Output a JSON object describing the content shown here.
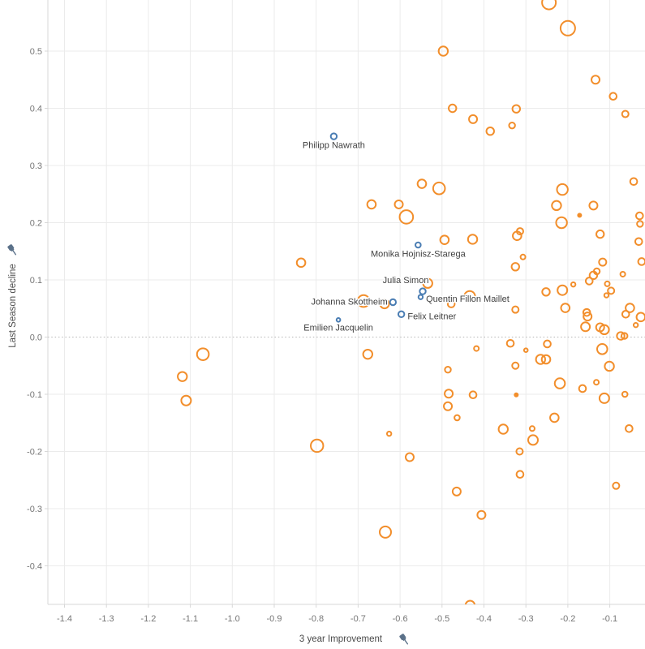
{
  "chart_data": {
    "type": "scatter",
    "title": "",
    "xlabel": "3 year Improvement",
    "ylabel": "Last Season decline",
    "legend": "none",
    "grid": true,
    "x_ticks": [
      -1.4,
      -1.3,
      -1.2,
      -1.1,
      -1.0,
      -0.9,
      -0.8,
      -0.7,
      -0.6,
      -0.5,
      -0.4,
      -0.3,
      -0.2,
      -0.1
    ],
    "y_ticks": [
      0.5,
      0.4,
      0.3,
      0.2,
      0.1,
      0.0,
      -0.1,
      -0.2,
      -0.3,
      -0.4
    ],
    "x_range": [
      -1.44,
      -0.01
    ],
    "y_range": [
      -0.47,
      0.59
    ],
    "zero_line_y": 0,
    "series": [
      {
        "name": "athletes",
        "color": "#f28e2b",
        "marker": "open-circle",
        "points": [
          [
            -0.245,
            0.585,
            8.5
          ],
          [
            -0.2,
            0.54,
            9
          ],
          [
            -0.497,
            0.5,
            5.7
          ],
          [
            -0.134,
            0.45,
            5
          ],
          [
            -0.092,
            0.421,
            4.3
          ],
          [
            -0.063,
            0.39,
            4
          ],
          [
            -0.475,
            0.4,
            4.7
          ],
          [
            -0.426,
            0.381,
            5
          ],
          [
            -0.385,
            0.36,
            4.7
          ],
          [
            -0.323,
            0.399,
            4.7
          ],
          [
            -0.333,
            0.37,
            3.7
          ],
          [
            -0.548,
            0.268,
            5.3
          ],
          [
            -0.507,
            0.26,
            7.3
          ],
          [
            -0.668,
            0.232,
            5.3
          ],
          [
            -0.603,
            0.232,
            5
          ],
          [
            -0.585,
            0.21,
            8.3
          ],
          [
            -0.227,
            0.23,
            5.7
          ],
          [
            -0.139,
            0.23,
            5
          ],
          [
            -0.213,
            0.258,
            6.7
          ],
          [
            -0.043,
            0.272,
            4.3
          ],
          [
            -0.172,
            0.213,
            2
          ],
          [
            -0.215,
            0.2,
            6.7
          ],
          [
            -0.029,
            0.212,
            4.3
          ],
          [
            -0.028,
            0.198,
            3.7
          ],
          [
            -0.494,
            0.17,
            5.3
          ],
          [
            -0.427,
            0.171,
            5.7
          ],
          [
            -0.321,
            0.177,
            5.3
          ],
          [
            -0.314,
            0.185,
            4
          ],
          [
            -0.123,
            0.18,
            4.7
          ],
          [
            -0.031,
            0.167,
            4.3
          ],
          [
            -0.307,
            0.14,
            3
          ],
          [
            -0.836,
            0.13,
            5.3
          ],
          [
            -0.117,
            0.131,
            4.5
          ],
          [
            -0.024,
            0.132,
            4.3
          ],
          [
            -0.325,
            0.123,
            4.7
          ],
          [
            -0.139,
            0.108,
            4.7
          ],
          [
            -0.131,
            0.115,
            3.7
          ],
          [
            -0.149,
            0.098,
            4.3
          ],
          [
            -0.069,
            0.11,
            3
          ],
          [
            -0.106,
            0.093,
            3
          ],
          [
            -0.097,
            0.081,
            4
          ],
          [
            -0.108,
            0.073,
            2.7
          ],
          [
            -0.187,
            0.092,
            2.7
          ],
          [
            -0.534,
            0.094,
            5.7
          ],
          [
            -0.252,
            0.079,
            4.7
          ],
          [
            -0.213,
            0.082,
            6
          ],
          [
            -0.687,
            0.063,
            7.3
          ],
          [
            -0.637,
            0.058,
            5.5
          ],
          [
            -0.478,
            0.058,
            4.3
          ],
          [
            -0.434,
            0.071,
            6.7
          ],
          [
            -0.325,
            0.048,
            4
          ],
          [
            -0.206,
            0.051,
            5.3
          ],
          [
            -0.155,
            0.043,
            4.3
          ],
          [
            -0.153,
            0.036,
            5
          ],
          [
            -0.052,
            0.051,
            5.3
          ],
          [
            -0.062,
            0.04,
            4.3
          ],
          [
            -0.026,
            0.035,
            5.3
          ],
          [
            -0.038,
            0.021,
            2.7
          ],
          [
            -0.158,
            0.018,
            5.5
          ],
          [
            -0.123,
            0.017,
            5
          ],
          [
            -0.113,
            0.013,
            5.7
          ],
          [
            -0.074,
            0.002,
            4.7
          ],
          [
            -0.065,
            0.002,
            3.7
          ],
          [
            -1.07,
            -0.03,
            7.3
          ],
          [
            -1.119,
            -0.069,
            5.7
          ],
          [
            -1.11,
            -0.111,
            6
          ],
          [
            -0.677,
            -0.03,
            5.7
          ],
          [
            -0.337,
            -0.011,
            4.3
          ],
          [
            -0.3,
            -0.023,
            2.3
          ],
          [
            -0.249,
            -0.012,
            4.3
          ],
          [
            -0.418,
            -0.02,
            3
          ],
          [
            -0.118,
            -0.021,
            6.3
          ],
          [
            -0.265,
            -0.039,
            5.7
          ],
          [
            -0.252,
            -0.039,
            5.3
          ],
          [
            -0.486,
            -0.057,
            3.7
          ],
          [
            -0.101,
            -0.051,
            5.7
          ],
          [
            -0.325,
            -0.05,
            4
          ],
          [
            -0.219,
            -0.081,
            6.3
          ],
          [
            -0.165,
            -0.09,
            4.3
          ],
          [
            -0.132,
            -0.079,
            3
          ],
          [
            -0.484,
            -0.099,
            5
          ],
          [
            -0.426,
            -0.101,
            4.3
          ],
          [
            -0.323,
            -0.101,
            2
          ],
          [
            -0.113,
            -0.107,
            6
          ],
          [
            -0.064,
            -0.1,
            3.3
          ],
          [
            -0.486,
            -0.121,
            5
          ],
          [
            -0.464,
            -0.141,
            3.3
          ],
          [
            -0.354,
            -0.161,
            5.7
          ],
          [
            -0.285,
            -0.16,
            3
          ],
          [
            -0.283,
            -0.18,
            6
          ],
          [
            -0.232,
            -0.141,
            5.3
          ],
          [
            -0.315,
            -0.2,
            4
          ],
          [
            -0.054,
            -0.16,
            4.3
          ],
          [
            -0.314,
            -0.24,
            4.3
          ],
          [
            -0.465,
            -0.27,
            5
          ],
          [
            -0.085,
            -0.26,
            4
          ],
          [
            -0.406,
            -0.311,
            5
          ],
          [
            -0.798,
            -0.19,
            7.7
          ],
          [
            -0.626,
            -0.169,
            2.7
          ],
          [
            -0.577,
            -0.21,
            5
          ],
          [
            -0.635,
            -0.341,
            7
          ],
          [
            -0.433,
            -0.469,
            5.7
          ]
        ]
      },
      {
        "name": "highlighted-athletes",
        "color": "#4a7db3",
        "marker": "open-circle",
        "labeled_points": [
          {
            "label": "Philipp Nawrath",
            "x": -0.758,
            "y": 0.351,
            "r": 3.7,
            "label_pos": "below"
          },
          {
            "label": "Monika Hojnisz-Starega",
            "x": -0.557,
            "y": 0.161,
            "r": 3.3,
            "label_pos": "below"
          },
          {
            "label": "Julia Simon",
            "x": -0.546,
            "y": 0.08,
            "r": 3.7,
            "label_pos": "above-left"
          },
          {
            "label": "Quentin Fillon Maillet",
            "x": -0.551,
            "y": 0.07,
            "r": 2.7,
            "label_pos": "right"
          },
          {
            "label": "Johanna Skottheim",
            "x": -0.617,
            "y": 0.061,
            "r": 3.7,
            "label_pos": "left"
          },
          {
            "label": "Felix Leitner",
            "x": -0.597,
            "y": 0.04,
            "r": 3.7,
            "label_pos": "right"
          },
          {
            "label": "Emilien Jacquelin",
            "x": -0.747,
            "y": 0.03,
            "r": 2.3,
            "label_pos": "below"
          }
        ]
      }
    ]
  },
  "axes": {
    "x_title": "3 year Improvement",
    "y_title": "Last Season decline",
    "x_pin_icon": "pushpin-icon",
    "y_pin_icon": "pushpin-icon"
  },
  "colors": {
    "point_stroke": "#f28e2b",
    "highlight_stroke": "#4a7db3",
    "pin_icon": "#5b7189",
    "gridline": "#ebebeb",
    "zero_line": "#b5b5b5",
    "tick_text": "#767676",
    "title_text": "#4a4a4a",
    "label_text": "#3f3f3f",
    "background": "#ffffff"
  }
}
